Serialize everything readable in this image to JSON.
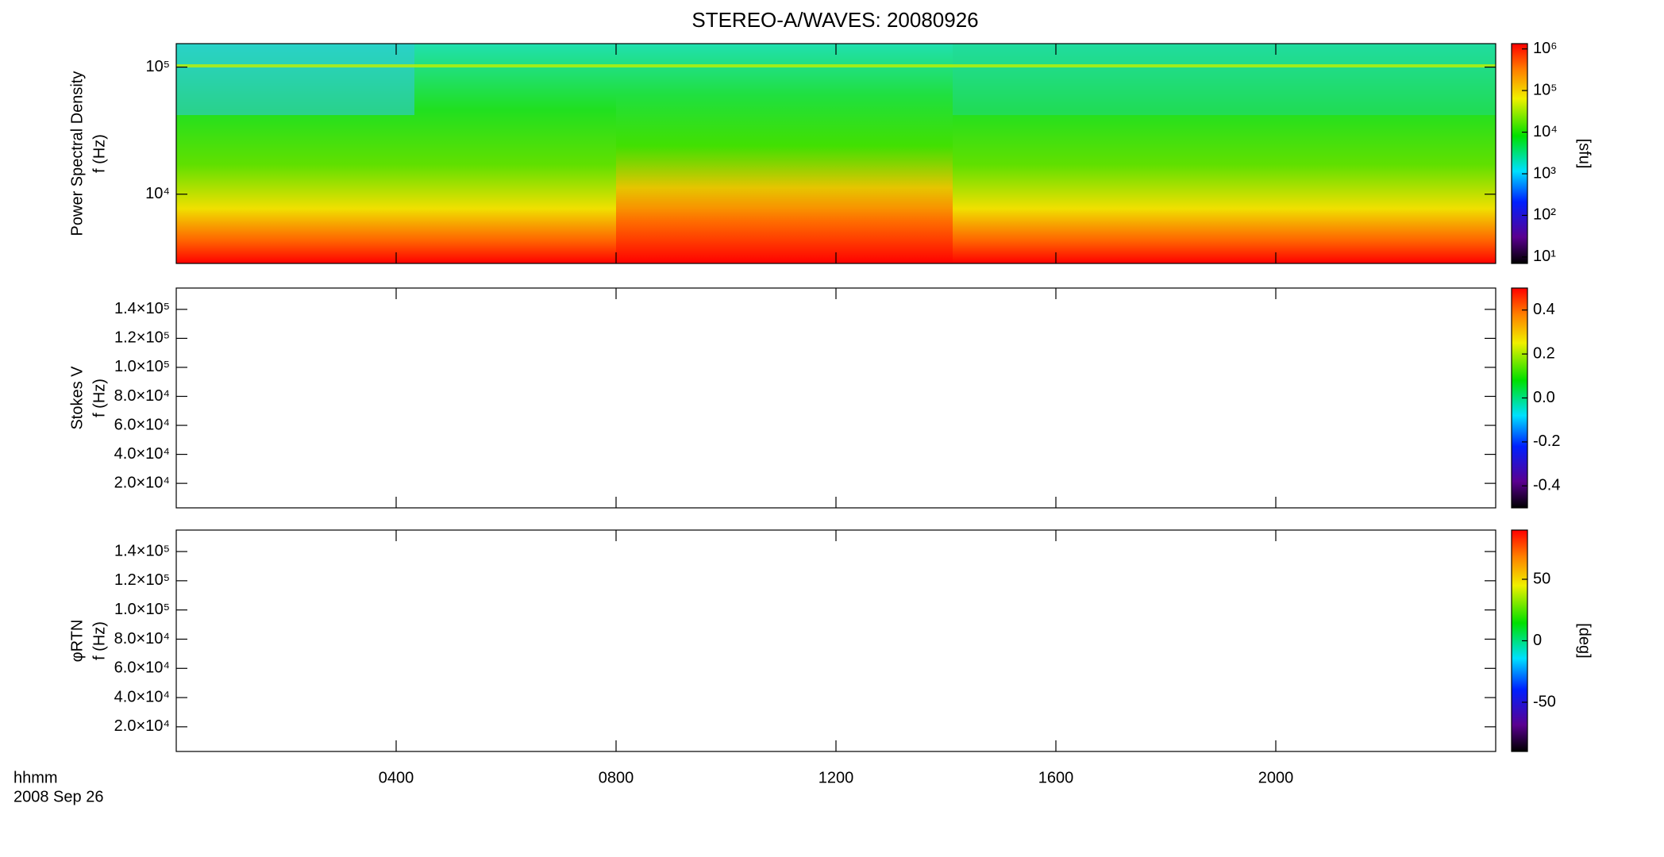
{
  "figure": {
    "title": "STEREO-A/WAVES: 20080926",
    "x_label": "hhmm",
    "x_date": "2008 Sep 26",
    "xlim": [
      0,
      24
    ],
    "xticks": [
      {
        "value": 4,
        "label": "0400"
      },
      {
        "value": 8,
        "label": "0800"
      },
      {
        "value": 12,
        "label": "1200"
      },
      {
        "value": 16,
        "label": "1600"
      },
      {
        "value": 20,
        "label": "2000"
      }
    ]
  },
  "chart_data": [
    {
      "type": "spectrogram",
      "ylabel": [
        "Power Spectral Density",
        "f (Hz)"
      ],
      "ylog": true,
      "ylim": [
        2850,
        153000
      ],
      "yticks": [
        {
          "value": 10000,
          "label": "10⁴"
        },
        {
          "value": 100000,
          "label": "10⁵"
        }
      ],
      "colorbar": {
        "log": true,
        "lim": [
          7,
          1340000
        ],
        "label": "[sfu]",
        "ticks": [
          {
            "value": 10,
            "label": "10¹"
          },
          {
            "value": 100,
            "label": "10²"
          },
          {
            "value": 1000,
            "label": "10³"
          },
          {
            "value": 10000,
            "label": "10⁴"
          },
          {
            "value": 100000,
            "label": "10⁵"
          },
          {
            "value": 1000000,
            "label": "10⁶"
          }
        ]
      }
    },
    {
      "type": "spectrogram",
      "ylabel": [
        "Stokes V",
        "f (Hz)"
      ],
      "ylog": false,
      "ylim": [
        3100,
        154700
      ],
      "yticks": [
        {
          "value": 20000,
          "label": "2.0×10⁴"
        },
        {
          "value": 40000,
          "label": "4.0×10⁴"
        },
        {
          "value": 60000,
          "label": "6.0×10⁴"
        },
        {
          "value": 80000,
          "label": "8.0×10⁴"
        },
        {
          "value": 100000,
          "label": "1.0×10⁵"
        },
        {
          "value": 120000,
          "label": "1.2×10⁵"
        },
        {
          "value": 140000,
          "label": "1.4×10⁵"
        }
      ],
      "colorbar": {
        "log": false,
        "lim": [
          -0.5,
          0.5
        ],
        "ticks": [
          -0.4,
          -0.2,
          {
            "value": 0,
            "label": "0.0"
          },
          0.2,
          0.4
        ]
      }
    },
    {
      "type": "spectrogram",
      "ylabel": [
        "φRTN",
        "f (Hz)"
      ],
      "ylog": false,
      "ylim": [
        3100,
        154700
      ],
      "yticks": [
        {
          "value": 20000,
          "label": "2.0×10⁴"
        },
        {
          "value": 40000,
          "label": "4.0×10⁴"
        },
        {
          "value": 60000,
          "label": "6.0×10⁴"
        },
        {
          "value": 80000,
          "label": "8.0×10⁴"
        },
        {
          "value": 100000,
          "label": "1.0×10⁵"
        },
        {
          "value": 120000,
          "label": "1.2×10⁵"
        },
        {
          "value": 140000,
          "label": "1.4×10⁵"
        }
      ],
      "colorbar": {
        "log": false,
        "lim": [
          -90,
          90
        ],
        "label": "[deg]",
        "ticks": [
          -50,
          0,
          50
        ]
      }
    }
  ]
}
